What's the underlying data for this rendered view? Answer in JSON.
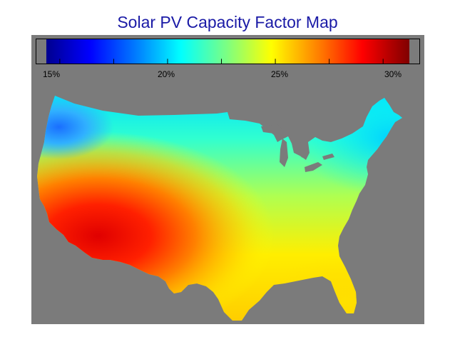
{
  "title": "Solar PV Capacity Factor Map",
  "colorbar": {
    "ticks": [
      "15%",
      "20%",
      "25%",
      "30%"
    ],
    "stops": [
      "#00008f",
      "#0000ff",
      "#007fff",
      "#00ffff",
      "#7fff7f",
      "#ffff00",
      "#ff7f00",
      "#ff0000",
      "#7f0000"
    ]
  },
  "colors": {
    "title": "#1a1aa6",
    "background": "#7b7b7b"
  }
}
